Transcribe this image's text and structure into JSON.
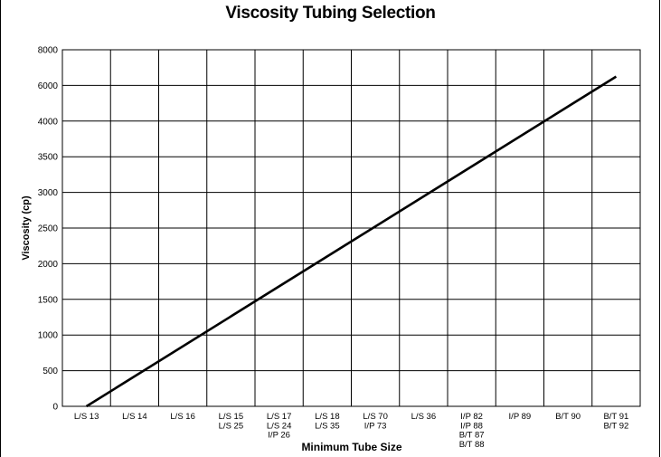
{
  "chart_data": {
    "type": "line",
    "title": "Viscosity Tubing Selection",
    "xlabel": "Minimum Tube Size",
    "ylabel": "Viscosity (cp)",
    "yticks": [
      {
        "value": 0,
        "label": "0"
      },
      {
        "value": 500,
        "label": "500"
      },
      {
        "value": 1000,
        "label": "1000"
      },
      {
        "value": 1500,
        "label": "1500"
      },
      {
        "value": 2000,
        "label": "2000"
      },
      {
        "value": 2500,
        "label": "2500"
      },
      {
        "value": 3000,
        "label": "3000"
      },
      {
        "value": 3500,
        "label": "3500"
      },
      {
        "value": 4000,
        "label": "4000"
      },
      {
        "value": 6000,
        "label": "6000"
      },
      {
        "value": 8000,
        "label": "8000"
      }
    ],
    "categories": [
      [
        "L/S 13"
      ],
      [
        "L/S 14"
      ],
      [
        "L/S 16"
      ],
      [
        "L/S 15",
        "L/S 25"
      ],
      [
        "L/S 17",
        "L/S 24",
        "I/P 26"
      ],
      [
        "L/S 18",
        "L/S 35"
      ],
      [
        "L/S 70",
        "I/P 73"
      ],
      [
        "L/S 36"
      ],
      [
        "I/P 82",
        "I/P 88",
        "B/T 87",
        "B/T 88"
      ],
      [
        "I/P 89"
      ],
      [
        "B/T 90"
      ],
      [
        "B/T 91",
        "B/T 92"
      ]
    ],
    "series": [
      {
        "x": [
          0.5,
          11.5
        ],
        "y": [
          0,
          6500
        ]
      }
    ],
    "grid": true,
    "legend": "none",
    "colors": {
      "line": "#000000",
      "grid": "#000000",
      "background": "#ffffff"
    }
  }
}
